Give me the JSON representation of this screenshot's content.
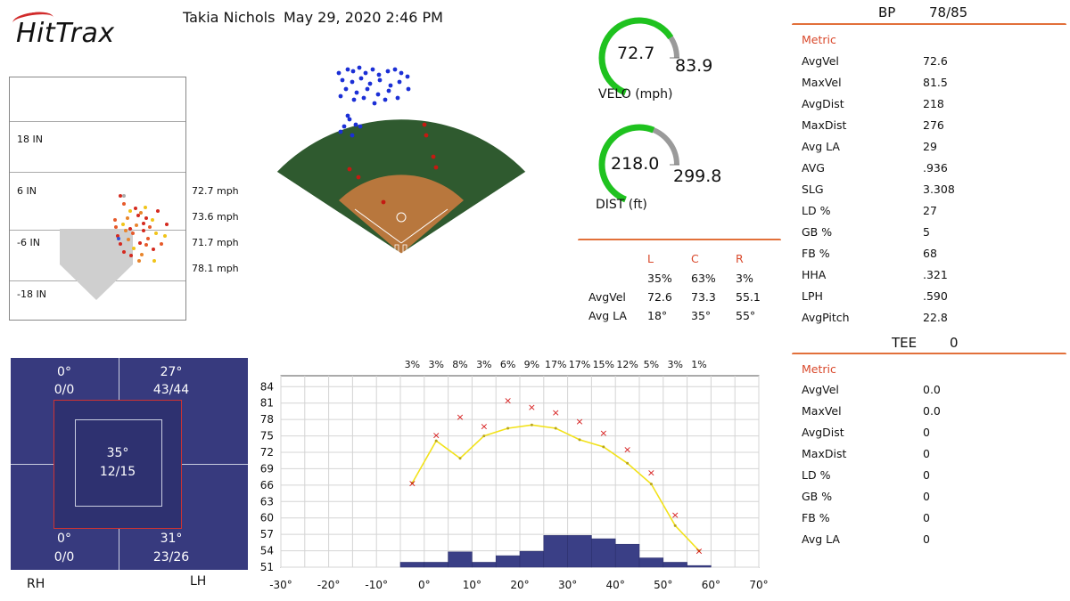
{
  "header": {
    "logo_text": "HitTrax",
    "player_name": "Takia Nichols",
    "session_datetime": "May 29, 2020 2:46 PM"
  },
  "strike_zone": {
    "height_labels": [
      "18 IN",
      "6 IN",
      "-6 IN",
      "-18 IN"
    ],
    "speed_labels": [
      "72.7 mph",
      "73.6 mph",
      "71.7 mph",
      "78.1 mph"
    ]
  },
  "velo_gauge": {
    "value": "72.7",
    "max": "83.9",
    "caption": "VELO (mph)",
    "fraction": 0.867
  },
  "dist_gauge": {
    "value": "218.0",
    "max": "299.8",
    "caption": "DIST (ft)",
    "fraction": 0.727
  },
  "direction_split": {
    "headers": [
      "L",
      "C",
      "R"
    ],
    "percents": [
      "35%",
      "63%",
      "3%"
    ],
    "avgvel_label": "AvgVel",
    "avgvel": [
      "72.6",
      "73.3",
      "55.1"
    ],
    "avgla_label": "Avg LA",
    "avgla": [
      "18°",
      "35°",
      "55°"
    ]
  },
  "bp_panel": {
    "title": "BP",
    "count": "78/85",
    "metric_header": "Metric",
    "rows": [
      {
        "name": "AvgVel",
        "value": "72.6"
      },
      {
        "name": "MaxVel",
        "value": "81.5"
      },
      {
        "name": "AvgDist",
        "value": "218"
      },
      {
        "name": "MaxDist",
        "value": "276"
      },
      {
        "name": "Avg LA",
        "value": "29"
      },
      {
        "name": "AVG",
        "value": ".936"
      },
      {
        "name": "SLG",
        "value": "3.308"
      },
      {
        "name": "LD %",
        "value": "27"
      },
      {
        "name": "GB %",
        "value": "5"
      },
      {
        "name": "FB %",
        "value": "68"
      },
      {
        "name": "HHA",
        "value": ".321"
      },
      {
        "name": "LPH",
        "value": ".590"
      },
      {
        "name": "AvgPitch",
        "value": "22.8"
      }
    ]
  },
  "tee_panel": {
    "title": "TEE",
    "count": "0",
    "metric_header": "Metric",
    "rows": [
      {
        "name": "AvgVel",
        "value": "0.0"
      },
      {
        "name": "MaxVel",
        "value": "0.0"
      },
      {
        "name": "AvgDist",
        "value": "0"
      },
      {
        "name": "MaxDist",
        "value": "0"
      },
      {
        "name": "LD %",
        "value": "0"
      },
      {
        "name": "GB %",
        "value": "0"
      },
      {
        "name": "FB %",
        "value": "0"
      },
      {
        "name": "Avg LA",
        "value": "0"
      }
    ]
  },
  "quadrants": {
    "top_left": {
      "angle": "0°",
      "count": "0/0"
    },
    "top_right": {
      "angle": "27°",
      "count": "43/44"
    },
    "center": {
      "angle": "35°",
      "count": "12/15"
    },
    "bottom_left": {
      "angle": "0°",
      "count": "0/0"
    },
    "bottom_right": {
      "angle": "31°",
      "count": "23/26"
    },
    "left_hand_label": "RH",
    "right_hand_label": "LH"
  },
  "colors": {
    "field_grass": "#2f5a2f",
    "infield_dirt": "#b8773d",
    "quad_bg": "#373a7e",
    "accent_orange": "#e2703a",
    "metric_red": "#d9482b",
    "gauge_green": "#1fc21f",
    "gauge_gray": "#9a9a9a"
  },
  "chart_data": {
    "type": "line",
    "xlim": [
      -30,
      70
    ],
    "ylim": [
      51,
      86
    ],
    "x_ticks": [
      "-30°",
      "-20°",
      "-10°",
      "0°",
      "10°",
      "20°",
      "30°",
      "40°",
      "50°",
      "60°",
      "70°"
    ],
    "y_ticks": [
      "84",
      "81",
      "78",
      "75",
      "72",
      "69",
      "66",
      "63",
      "60",
      "57",
      "54",
      "51"
    ],
    "bin_percent_labels": [
      "3%",
      "3%",
      "8%",
      "3%",
      "6%",
      "9%",
      "17%",
      "17%",
      "15%",
      "12%",
      "5%",
      "3%",
      "1%"
    ],
    "bins_x": [
      -2.5,
      2.5,
      7.5,
      12.5,
      17.5,
      22.5,
      27.5,
      32.5,
      37.5,
      42.5,
      47.5,
      52.5,
      57.5
    ],
    "series": [
      {
        "values": [
          66.4,
          74.1,
          70.9,
          75.0,
          76.4,
          77.0,
          76.4,
          74.3,
          73.0,
          70.0,
          66.2,
          58.6,
          54.0
        ]
      },
      {
        "values": [
          66.4,
          75.2,
          78.5,
          76.8,
          81.5,
          80.3,
          79.3,
          77.7,
          75.6,
          72.6,
          68.3,
          60.6,
          54.0
        ]
      }
    ],
    "histogram_heights": [
      51.9,
      51.9,
      53.8,
      51.9,
      53.1,
      53.9,
      56.8,
      56.8,
      56.2,
      55.2,
      52.7,
      51.9,
      51.3
    ]
  }
}
